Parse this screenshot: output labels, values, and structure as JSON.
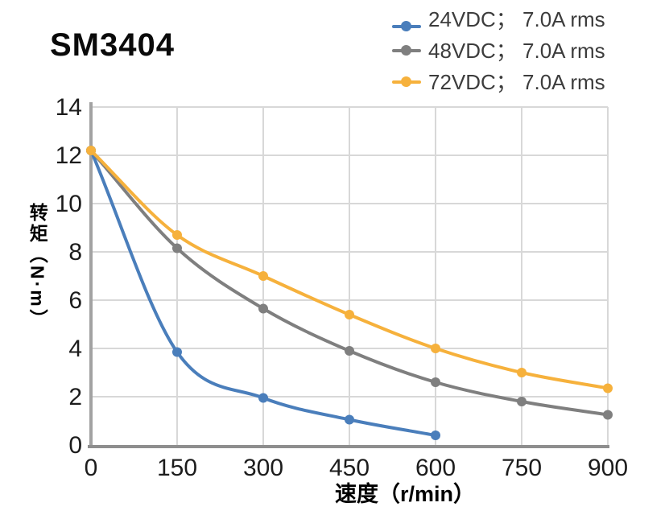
{
  "page": {
    "background": "#ffffff"
  },
  "title": "SM3404",
  "colors": {
    "grid": "#d8d8d8",
    "axis_left": "#a2a2a2",
    "axis_bottom": "#8e8e8e",
    "tick_text": "#1c1c1c",
    "legend_text": "#3c3c3c",
    "title_text": "#0a0a0a"
  },
  "chart_data": {
    "type": "line",
    "title": "SM3404",
    "xlabel": "速度（r/min）",
    "ylabel": "转矩（N·m）",
    "xlim": [
      0,
      900
    ],
    "ylim": [
      0,
      14
    ],
    "x_ticks": [
      0,
      150,
      300,
      450,
      600,
      750,
      900
    ],
    "y_ticks": [
      0,
      2,
      4,
      6,
      8,
      10,
      12,
      14
    ],
    "grid": true,
    "legend_position": "top-right",
    "line_smoothing": "monotone",
    "marker": "circle",
    "series": [
      {
        "name": "24VDC； 7.0A rms",
        "color": "#4a7ebb",
        "x": [
          0,
          150,
          300,
          450,
          600
        ],
        "y": [
          12.2,
          3.85,
          1.95,
          1.05,
          0.4
        ]
      },
      {
        "name": "48VDC； 7.0A rms",
        "color": "#7f7f7f",
        "x": [
          0,
          150,
          300,
          450,
          600,
          750,
          900
        ],
        "y": [
          12.2,
          8.15,
          5.65,
          3.9,
          2.6,
          1.8,
          1.25
        ]
      },
      {
        "name": "72VDC； 7.0A rms",
        "color": "#f6b13c",
        "x": [
          0,
          150,
          300,
          450,
          600,
          750,
          900
        ],
        "y": [
          12.2,
          8.7,
          7.0,
          5.4,
          4.0,
          3.0,
          2.35
        ]
      }
    ]
  }
}
